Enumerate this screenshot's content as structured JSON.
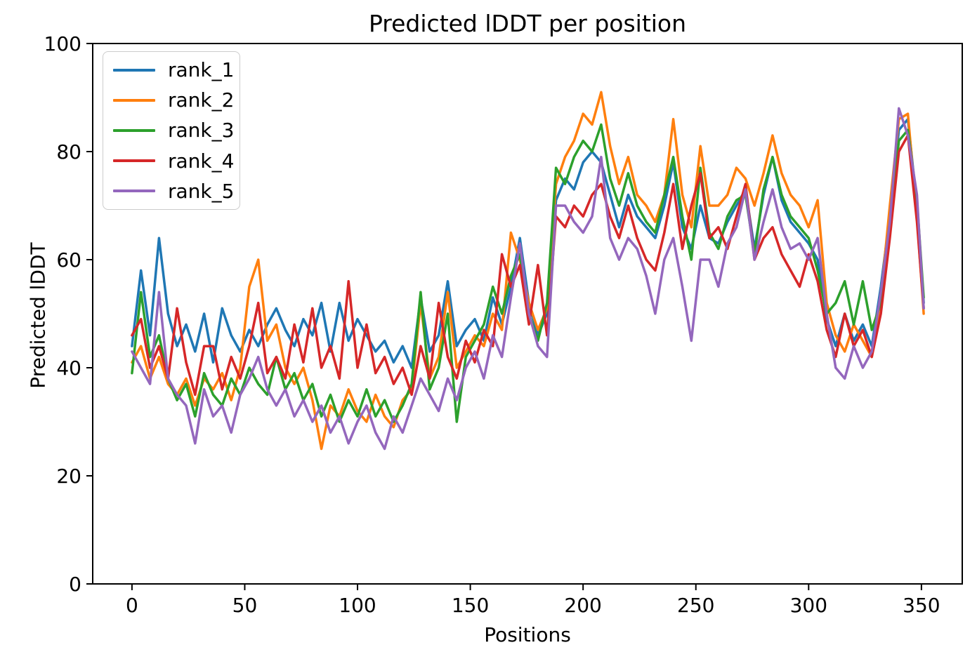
{
  "chart_data": {
    "type": "line",
    "title": "Predicted lDDT per position",
    "xlabel": "Positions",
    "ylabel": "Predicted lDDT",
    "xticks": [
      0,
      50,
      100,
      150,
      200,
      250,
      300,
      350
    ],
    "yticks": [
      0,
      20,
      40,
      60,
      80,
      100
    ],
    "xlim": [
      -17.4,
      368.1
    ],
    "ylim": [
      0,
      100
    ],
    "grid": false,
    "legend_position": "upper left",
    "x": [
      0,
      4,
      8,
      12,
      16,
      20,
      24,
      28,
      32,
      36,
      40,
      44,
      48,
      52,
      56,
      60,
      64,
      68,
      72,
      76,
      80,
      84,
      88,
      92,
      96,
      100,
      104,
      108,
      112,
      116,
      120,
      124,
      128,
      132,
      136,
      140,
      144,
      148,
      152,
      156,
      160,
      164,
      168,
      172,
      176,
      180,
      184,
      188,
      192,
      196,
      200,
      204,
      208,
      212,
      216,
      220,
      224,
      228,
      232,
      236,
      240,
      244,
      248,
      252,
      256,
      260,
      264,
      268,
      272,
      276,
      280,
      284,
      288,
      292,
      296,
      300,
      304,
      308,
      312,
      316,
      320,
      324,
      328,
      332,
      336,
      340,
      344,
      348,
      351
    ],
    "series": [
      {
        "name": "rank_1",
        "color": "#1f77b4",
        "values": [
          44,
          58,
          46,
          64,
          50,
          44,
          48,
          43,
          50,
          41,
          51,
          46,
          43,
          47,
          44,
          48,
          51,
          47,
          44,
          49,
          46,
          52,
          43,
          52,
          45,
          49,
          46,
          43,
          45,
          41,
          44,
          40,
          53,
          43,
          46,
          56,
          44,
          47,
          49,
          45,
          53,
          48,
          55,
          64,
          52,
          46,
          50,
          71,
          75,
          73,
          78,
          80,
          78,
          72,
          66,
          72,
          68,
          66,
          64,
          70,
          78,
          66,
          62,
          70,
          64,
          63,
          67,
          70,
          73,
          62,
          72,
          79,
          71,
          67,
          65,
          63,
          60,
          49,
          44,
          50,
          45,
          48,
          44,
          55,
          68,
          84,
          86,
          70,
          52
        ]
      },
      {
        "name": "rank_2",
        "color": "#ff7f0e",
        "values": [
          41,
          44,
          38,
          42,
          37,
          35,
          38,
          33,
          38,
          36,
          39,
          34,
          40,
          55,
          60,
          45,
          48,
          40,
          37,
          40,
          34,
          25,
          33,
          31,
          36,
          32,
          30,
          35,
          31,
          29,
          34,
          36,
          52,
          38,
          42,
          54,
          40,
          43,
          46,
          44,
          50,
          47,
          65,
          60,
          52,
          47,
          51,
          74,
          79,
          82,
          87,
          85,
          91,
          81,
          74,
          79,
          72,
          70,
          67,
          72,
          86,
          72,
          66,
          81,
          70,
          70,
          72,
          77,
          75,
          70,
          76,
          83,
          76,
          72,
          70,
          66,
          71,
          52,
          46,
          43,
          48,
          45,
          42,
          53,
          70,
          86,
          87,
          68,
          50
        ]
      },
      {
        "name": "rank_3",
        "color": "#2ca02c",
        "values": [
          39,
          54,
          42,
          46,
          38,
          34,
          37,
          31,
          39,
          35,
          33,
          38,
          35,
          40,
          37,
          35,
          42,
          36,
          39,
          34,
          37,
          31,
          35,
          30,
          34,
          31,
          36,
          31,
          34,
          30,
          33,
          37,
          54,
          36,
          40,
          50,
          30,
          42,
          45,
          48,
          55,
          50,
          57,
          61,
          50,
          45,
          52,
          77,
          74,
          79,
          82,
          80,
          85,
          75,
          70,
          76,
          70,
          67,
          65,
          72,
          79,
          68,
          60,
          77,
          65,
          62,
          68,
          71,
          72,
          61,
          73,
          79,
          72,
          68,
          66,
          64,
          58,
          50,
          52,
          56,
          48,
          56,
          47,
          52,
          66,
          82,
          84,
          71,
          53
        ]
      },
      {
        "name": "rank_4",
        "color": "#d62728",
        "values": [
          46,
          49,
          40,
          44,
          38,
          51,
          41,
          35,
          44,
          44,
          36,
          42,
          38,
          44,
          52,
          39,
          42,
          38,
          48,
          41,
          51,
          40,
          44,
          38,
          56,
          40,
          48,
          39,
          42,
          37,
          40,
          35,
          44,
          38,
          52,
          42,
          38,
          45,
          41,
          47,
          44,
          61,
          55,
          59,
          48,
          59,
          46,
          68,
          66,
          70,
          68,
          72,
          74,
          68,
          64,
          70,
          64,
          60,
          58,
          65,
          74,
          62,
          70,
          76,
          64,
          66,
          62,
          68,
          74,
          60,
          64,
          66,
          61,
          58,
          55,
          61,
          56,
          47,
          42,
          50,
          44,
          47,
          42,
          50,
          64,
          80,
          83,
          67,
          51
        ]
      },
      {
        "name": "rank_5",
        "color": "#9467bd",
        "values": [
          43,
          40,
          37,
          54,
          38,
          35,
          33,
          26,
          36,
          31,
          33,
          28,
          35,
          38,
          42,
          36,
          33,
          36,
          31,
          34,
          30,
          33,
          28,
          31,
          26,
          30,
          33,
          28,
          25,
          31,
          28,
          33,
          38,
          35,
          32,
          38,
          34,
          40,
          43,
          38,
          46,
          42,
          53,
          63,
          50,
          44,
          42,
          70,
          70,
          67,
          65,
          68,
          79,
          64,
          60,
          64,
          62,
          57,
          50,
          60,
          64,
          55,
          45,
          60,
          60,
          55,
          63,
          66,
          73,
          60,
          67,
          73,
          66,
          62,
          63,
          60,
          64,
          50,
          40,
          38,
          44,
          40,
          43,
          54,
          67,
          88,
          83,
          72,
          51
        ]
      }
    ]
  }
}
